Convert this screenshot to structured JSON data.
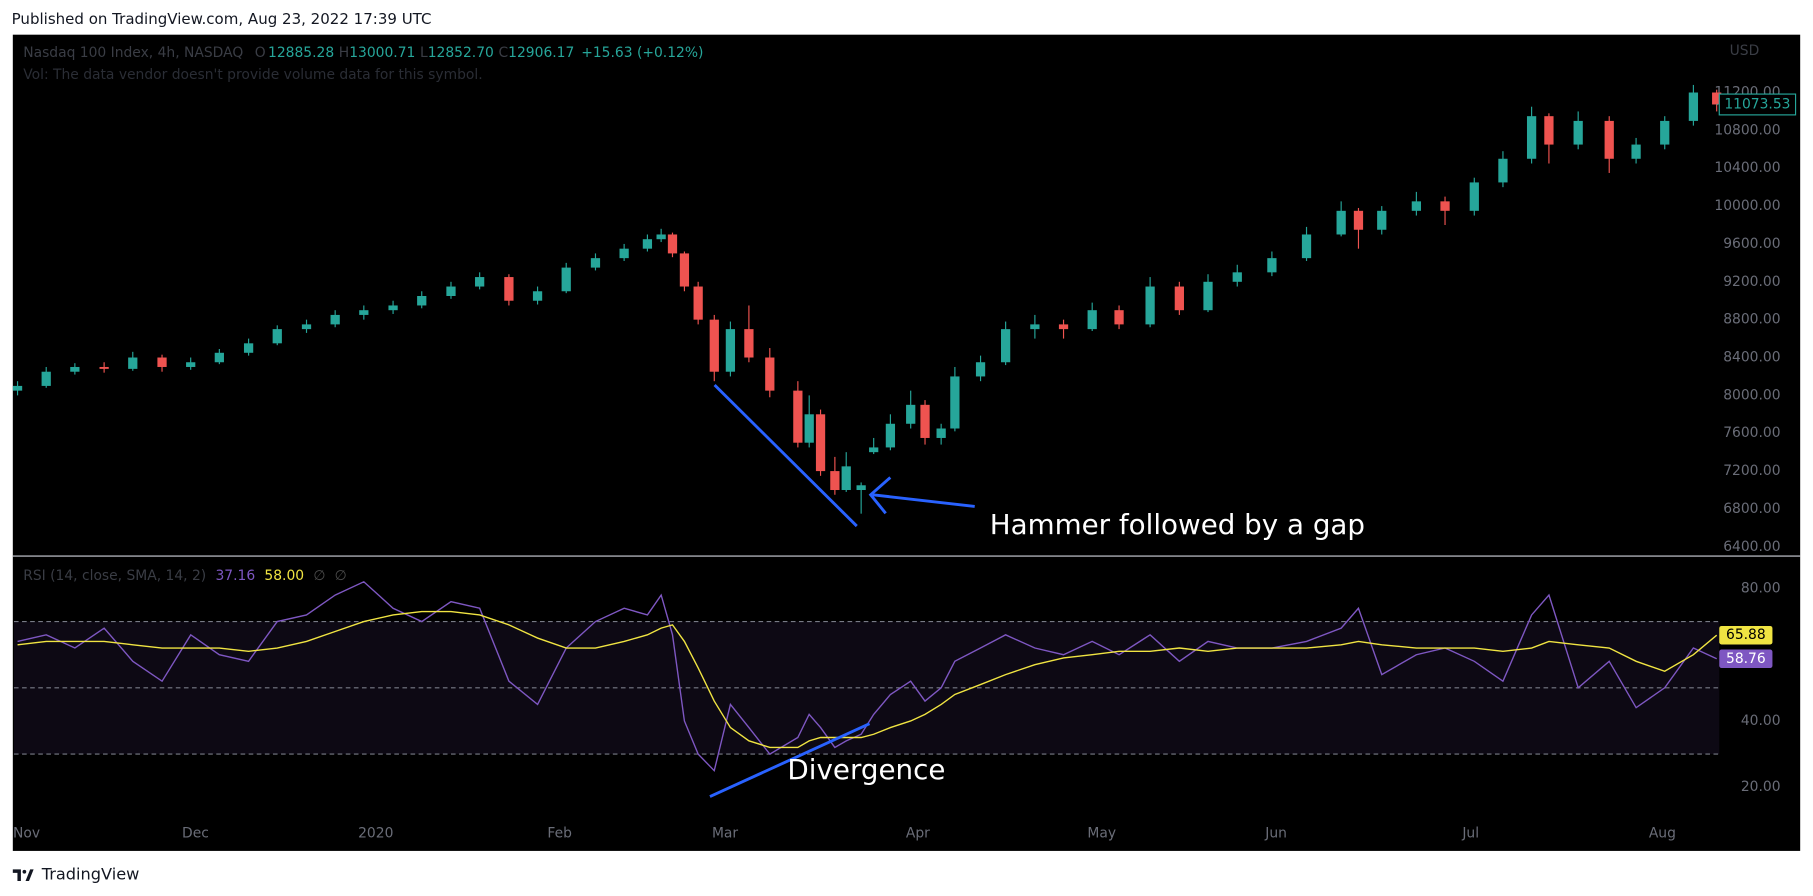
{
  "header": {
    "published": "Published on TradingView.com, Aug 23, 2022 17:39 UTC"
  },
  "chart_data": [
    {
      "type": "candlestick",
      "legend": {
        "symbol": "Nasdaq 100 Index, 4h, NASDAQ",
        "o_label": "O",
        "open": "12885.28",
        "h_label": "H",
        "high": "13000.71",
        "l_label": "L",
        "low": "12852.70",
        "c_label": "C",
        "close": "12906.17",
        "change": "+15.63 (+0.12%)"
      },
      "volume_note": "Vol: The data vendor doesn't provide volume data for this symbol.",
      "currency": "USD",
      "annotation": "Hammer followed by a gap",
      "up_color": "#26a69a",
      "down_color": "#ef5350",
      "xlim": [
        -2.1,
        296.7
      ],
      "ylim": [
        6314,
        11811
      ],
      "yticks": [
        {
          "value": 6400,
          "label": "6400.00"
        },
        {
          "value": 6800,
          "label": "6800.00"
        },
        {
          "value": 7200,
          "label": "7200.00"
        },
        {
          "value": 7600,
          "label": "7600.00"
        },
        {
          "value": 8000,
          "label": "8000.00"
        },
        {
          "value": 8400,
          "label": "8400.00"
        },
        {
          "value": 8800,
          "label": "8800.00"
        },
        {
          "value": 9200,
          "label": "9200.00"
        },
        {
          "value": 9600,
          "label": "9600.00"
        },
        {
          "value": 10000,
          "label": "10000.00"
        },
        {
          "value": 10400,
          "label": "10400.00"
        },
        {
          "value": 10800,
          "label": "10800.00"
        },
        {
          "value": 11200,
          "label": "11200.00"
        }
      ],
      "x": [
        -1.5,
        3.3,
        8.1,
        13.0,
        17.8,
        22.7,
        27.5,
        32.3,
        37.2,
        42.0,
        46.9,
        51.7,
        56.5,
        61.4,
        66.2,
        71.1,
        75.9,
        80.8,
        85.6,
        90.4,
        95.3,
        100.1,
        104.0,
        106.3,
        108.2,
        110.2,
        112.5,
        115.2,
        117.9,
        121.0,
        124.5,
        129.2,
        131.1,
        133.0,
        135.4,
        137.3,
        139.8,
        141.9,
        144.7,
        148.1,
        150.5,
        153.2,
        155.5,
        159.8,
        164.0,
        168.9,
        173.7,
        178.5,
        183.0,
        188.2,
        193.1,
        197.9,
        202.8,
        208.6,
        214.4,
        220.2,
        223.1,
        227.0,
        232.8,
        237.6,
        242.5,
        247.3,
        252.1,
        255.0,
        259.9,
        265.1,
        269.6,
        274.4,
        279.2,
        283.1
      ],
      "ohlc": [
        [
          8050,
          8150,
          8000,
          8100
        ],
        [
          8100,
          8300,
          8080,
          8250
        ],
        [
          8250,
          8340,
          8220,
          8300
        ],
        [
          8300,
          8350,
          8240,
          8280
        ],
        [
          8280,
          8460,
          8260,
          8400
        ],
        [
          8400,
          8430,
          8250,
          8300
        ],
        [
          8300,
          8400,
          8270,
          8350
        ],
        [
          8350,
          8490,
          8330,
          8450
        ],
        [
          8450,
          8600,
          8420,
          8550
        ],
        [
          8550,
          8740,
          8530,
          8700
        ],
        [
          8700,
          8800,
          8660,
          8750
        ],
        [
          8750,
          8900,
          8720,
          8850
        ],
        [
          8850,
          8950,
          8800,
          8900
        ],
        [
          8900,
          9000,
          8860,
          8950
        ],
        [
          8950,
          9100,
          8920,
          9050
        ],
        [
          9050,
          9200,
          9020,
          9150
        ],
        [
          9150,
          9300,
          9120,
          9250
        ],
        [
          9250,
          9280,
          8950,
          9000
        ],
        [
          9000,
          9150,
          8960,
          9100
        ],
        [
          9100,
          9400,
          9080,
          9350
        ],
        [
          9350,
          9500,
          9320,
          9450
        ],
        [
          9450,
          9600,
          9420,
          9550
        ],
        [
          9550,
          9700,
          9520,
          9650
        ],
        [
          9650,
          9760,
          9620,
          9700
        ],
        [
          9700,
          9720,
          9460,
          9500
        ],
        [
          9500,
          9520,
          9100,
          9150
        ],
        [
          9150,
          9200,
          8750,
          8800
        ],
        [
          8800,
          8850,
          8150,
          8250
        ],
        [
          8250,
          8780,
          8200,
          8700
        ],
        [
          8700,
          8950,
          8350,
          8400
        ],
        [
          8400,
          8500,
          7980,
          8050
        ],
        [
          8050,
          8150,
          7450,
          7500
        ],
        [
          7500,
          8000,
          7450,
          7800
        ],
        [
          7800,
          7850,
          7150,
          7200
        ],
        [
          7200,
          7350,
          6950,
          7000
        ],
        [
          7000,
          7400,
          6980,
          7250
        ],
        [
          7000,
          7080,
          6750,
          7050
        ],
        [
          7400,
          7550,
          7380,
          7450
        ],
        [
          7450,
          7800,
          7420,
          7700
        ],
        [
          7700,
          8050,
          7650,
          7900
        ],
        [
          7900,
          7950,
          7480,
          7550
        ],
        [
          7550,
          7700,
          7480,
          7650
        ],
        [
          7650,
          8300,
          7620,
          8200
        ],
        [
          8200,
          8420,
          8150,
          8350
        ],
        [
          8350,
          8780,
          8320,
          8700
        ],
        [
          8700,
          8850,
          8600,
          8750
        ],
        [
          8750,
          8800,
          8600,
          8700
        ],
        [
          8700,
          8980,
          8680,
          8900
        ],
        [
          8900,
          8950,
          8700,
          8750
        ],
        [
          8750,
          9250,
          8720,
          9150
        ],
        [
          9150,
          9200,
          8850,
          8900
        ],
        [
          8900,
          9280,
          8880,
          9200
        ],
        [
          9200,
          9380,
          9150,
          9300
        ],
        [
          9300,
          9520,
          9260,
          9450
        ],
        [
          9450,
          9780,
          9420,
          9700
        ],
        [
          9700,
          10050,
          9680,
          9950
        ],
        [
          9950,
          9980,
          9550,
          9750
        ],
        [
          9750,
          10000,
          9700,
          9950
        ],
        [
          9950,
          10150,
          9900,
          10050
        ],
        [
          10050,
          10100,
          9800,
          9950
        ],
        [
          9950,
          10300,
          9900,
          10250
        ],
        [
          10250,
          10580,
          10200,
          10500
        ],
        [
          10500,
          11050,
          10450,
          10950
        ],
        [
          10950,
          10980,
          10450,
          10650
        ],
        [
          10650,
          11000,
          10600,
          10900
        ],
        [
          10900,
          10950,
          10350,
          10500
        ],
        [
          10500,
          10720,
          10450,
          10650
        ],
        [
          10650,
          10950,
          10600,
          10900
        ],
        [
          10900,
          11280,
          10850,
          11200
        ],
        [
          11200,
          11230,
          11000,
          11073.53
        ]
      ]
    },
    {
      "type": "line",
      "title": "RSI (14, close, SMA, 14, 2)",
      "readouts": [
        {
          "text": "37.16",
          "color": "#7e57c2"
        },
        {
          "text": "58.00",
          "color": "#f0e442"
        },
        {
          "text": "∅",
          "color": "#4a4a4a"
        },
        {
          "text": "∅",
          "color": "#4a4a4a"
        }
      ],
      "annotation": "Divergence",
      "xlim": [
        -2.1,
        296.7
      ],
      "xticks": [
        {
          "value": 0,
          "label": "Nov"
        },
        {
          "value": 28.3,
          "label": "Dec"
        },
        {
          "value": 58.5,
          "label": "2020"
        },
        {
          "value": 89.3,
          "label": "Feb"
        },
        {
          "value": 117.0,
          "label": "Mar"
        },
        {
          "value": 149.3,
          "label": "Apr"
        },
        {
          "value": 180.1,
          "label": "May"
        },
        {
          "value": 209.3,
          "label": "Jun"
        },
        {
          "value": 241.9,
          "label": "Jul"
        },
        {
          "value": 274.0,
          "label": "Aug"
        }
      ],
      "ylim": [
        11.6,
        89.4
      ],
      "yticks": [
        {
          "value": 20,
          "label": "20.00"
        },
        {
          "value": 40,
          "label": "40.00"
        },
        {
          "value": 80,
          "label": "80.00"
        }
      ],
      "levels": [
        70,
        50,
        30
      ],
      "x": [
        -1.5,
        3.3,
        8.1,
        13.0,
        17.8,
        22.7,
        27.5,
        32.3,
        37.2,
        42.0,
        46.9,
        51.7,
        56.5,
        61.4,
        66.2,
        71.1,
        75.9,
        80.8,
        85.6,
        90.4,
        95.3,
        100.1,
        104.0,
        106.3,
        108.2,
        110.2,
        112.5,
        115.2,
        117.9,
        121.0,
        124.5,
        129.2,
        131.1,
        133.0,
        135.4,
        137.3,
        139.8,
        141.9,
        144.7,
        148.1,
        150.5,
        153.2,
        155.5,
        159.8,
        164.0,
        168.9,
        173.7,
        178.5,
        183.0,
        188.2,
        193.1,
        197.9,
        202.8,
        208.6,
        214.4,
        220.2,
        223.1,
        227.0,
        232.8,
        237.6,
        242.5,
        247.3,
        252.1,
        255.0,
        259.9,
        265.1,
        269.6,
        274.4,
        279.2,
        283.1
      ],
      "series": [
        {
          "color": "#7e57c2",
          "values": [
            64,
            66,
            62,
            68,
            58,
            52,
            66,
            60,
            58,
            70,
            72,
            78,
            82,
            74,
            70,
            76,
            74,
            52,
            45,
            62,
            70,
            74,
            72,
            78,
            66,
            40,
            30,
            25,
            45,
            38,
            30,
            35,
            42,
            38,
            32,
            34,
            36,
            42,
            48,
            52,
            46,
            50,
            58,
            62,
            66,
            62,
            60,
            64,
            60,
            66,
            58,
            64,
            62,
            62,
            64,
            68,
            74,
            54,
            60,
            62,
            58,
            52,
            72,
            78,
            50,
            58,
            44,
            50,
            62,
            58.76
          ]
        },
        {
          "color": "#f0e442",
          "values": [
            63,
            64,
            64,
            64,
            63,
            62,
            62,
            62,
            61,
            62,
            64,
            67,
            70,
            72,
            73,
            73,
            72,
            69,
            65,
            62,
            62,
            64,
            66,
            68,
            69,
            64,
            56,
            46,
            38,
            34,
            32,
            32,
            34,
            35,
            35,
            35,
            35,
            36,
            38,
            40,
            42,
            45,
            48,
            51,
            54,
            57,
            59,
            60,
            61,
            61,
            62,
            61,
            62,
            62,
            62,
            63,
            64,
            63,
            62,
            62,
            62,
            61,
            62,
            64,
            63,
            62,
            58,
            55,
            60,
            65.88
          ]
        }
      ]
    }
  ],
  "footer": {
    "brand": "TradingView"
  }
}
